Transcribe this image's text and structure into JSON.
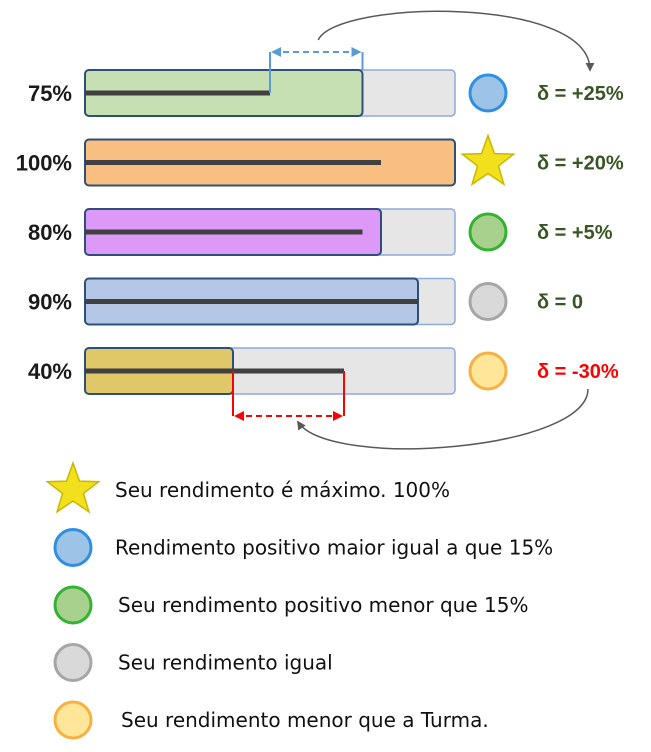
{
  "rows": [
    {
      "label": "75%",
      "student_fill": 0.75,
      "class_mark": 0.5,
      "bar_color": "#c6e0b4",
      "bar_border": "#2e4f7a",
      "indicator": "circle",
      "indicator_fill": "#9dc3e6",
      "indicator_stroke": "#2f8fe0",
      "indicator_name": "blue-circle-icon",
      "delta": "δ = +25%",
      "delta_color": "#375623"
    },
    {
      "label": "100%",
      "student_fill": 1.0,
      "class_mark": 0.8,
      "bar_color": "#f8bf80",
      "bar_border": "#2e4f7a",
      "indicator": "star",
      "indicator_fill": "#f2e01c",
      "indicator_stroke": "#c9b800",
      "indicator_name": "star-icon",
      "delta": "δ = +20%",
      "delta_color": "#375623"
    },
    {
      "label": "80%",
      "student_fill": 0.8,
      "class_mark": 0.75,
      "bar_color": "#dd99f7",
      "bar_border": "#2e4f7a",
      "indicator": "circle",
      "indicator_fill": "#a9d18e",
      "indicator_stroke": "#33b233",
      "indicator_name": "green-circle-icon",
      "delta": "δ = +5%",
      "delta_color": "#375623"
    },
    {
      "label": "90%",
      "student_fill": 0.9,
      "class_mark": 0.9,
      "bar_color": "#b4c7e7",
      "bar_border": "#2e4f7a",
      "indicator": "circle",
      "indicator_fill": "#d9d9d9",
      "indicator_stroke": "#a6a6a6",
      "indicator_name": "gray-circle-icon",
      "delta": "δ = 0",
      "delta_color": "#375623"
    },
    {
      "label": "40%",
      "student_fill": 0.4,
      "class_mark": 0.7,
      "bar_color": "#e0c868",
      "bar_border": "#2e4f7a",
      "indicator": "circle",
      "indicator_fill": "#ffe699",
      "indicator_stroke": "#f7b143",
      "indicator_name": "orange-circle-icon",
      "delta": "δ = -30%",
      "delta_color": "#ff0000"
    }
  ],
  "legend": [
    {
      "icon": "star",
      "icon_name": "star-icon",
      "fill": "#f2e01c",
      "stroke": "#c9b800",
      "text": "Seu rendimento é máximo. 100%"
    },
    {
      "icon": "circle",
      "icon_name": "blue-circle-icon",
      "fill": "#9dc3e6",
      "stroke": "#2f8fe0",
      "text": "Rendimento positivo maior igual a que 15%"
    },
    {
      "icon": "circle",
      "icon_name": "green-circle-icon",
      "fill": "#a9d18e",
      "stroke": "#33b233",
      "text": "Seu rendimento positivo menor que 15%"
    },
    {
      "icon": "circle",
      "icon_name": "gray-circle-icon",
      "fill": "#d9d9d9",
      "stroke": "#a6a6a6",
      "text": "Seu rendimento igual"
    },
    {
      "icon": "circle",
      "icon_name": "orange-circle-icon",
      "fill": "#ffe699",
      "stroke": "#f7b143",
      "text": "Seu rendimento menor que a Turma."
    }
  ],
  "colors": {
    "track": "#e6e6e6",
    "track_border": "#2e4f7a",
    "class_line": "#404040",
    "positive_gap_arrow": "#5b9bd5",
    "negative_gap_arrow": "#ff0000",
    "connector": "#595959"
  }
}
